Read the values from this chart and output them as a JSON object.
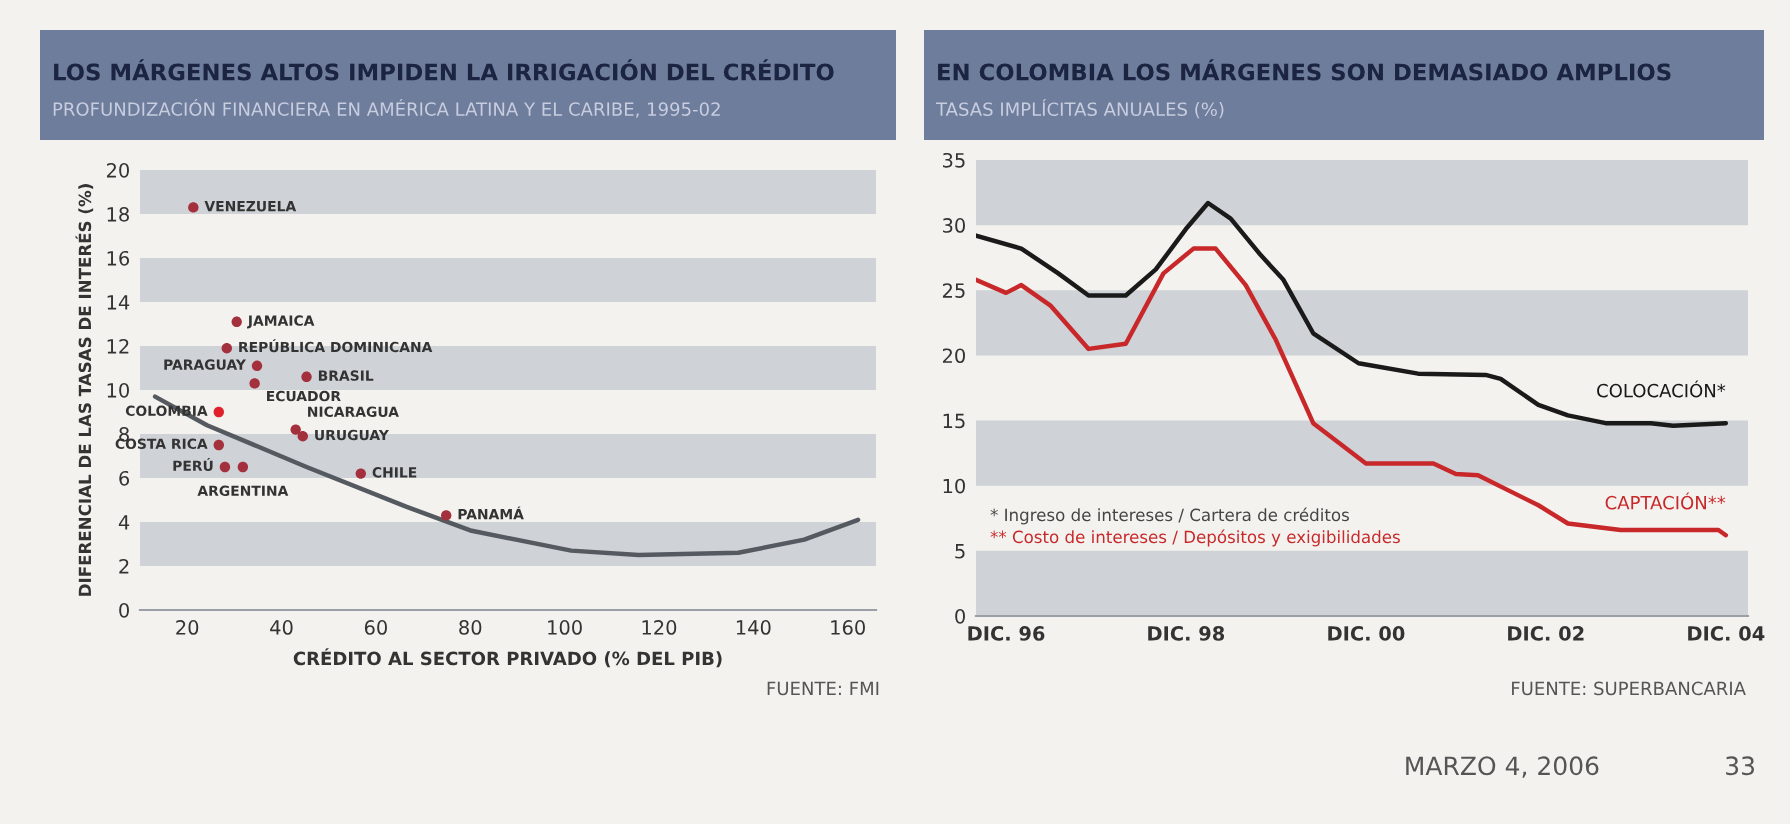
{
  "chart_data": [
    {
      "type": "scatter",
      "title": "LOS MÁRGENES ALTOS IMPIDEN LA IRRIGACIÓN DEL CRÉDITO",
      "subtitle": "PROFUNDIZACIÓN FINANCIERA EN AMÉRICA LATINA Y EL CARIBE, 1995-02",
      "xlabel": "CRÉDITO AL SECTOR PRIVADO (% DEL PIB)",
      "ylabel": "DIFERENCIAL DE LAS TASAS DE INTERÉS (%)",
      "xlim": [
        10,
        166
      ],
      "ylim": [
        0,
        20
      ],
      "xticks": [
        20,
        40,
        60,
        80,
        100,
        120,
        140,
        160
      ],
      "yticks": [
        0,
        2,
        4,
        6,
        8,
        10,
        12,
        14,
        16,
        18,
        20
      ],
      "bands": [
        {
          "axis": "y",
          "from": 18,
          "to": 20,
          "color": "#cfd2d6"
        },
        {
          "axis": "y",
          "from": 14,
          "to": 16,
          "color": "#cfd2d6"
        },
        {
          "axis": "y",
          "from": 10,
          "to": 12,
          "color": "#cfd2d6"
        },
        {
          "axis": "y",
          "from": 6,
          "to": 8,
          "color": "#cfd2d6"
        },
        {
          "axis": "y",
          "from": 2,
          "to": 4,
          "color": "#cfd2d6"
        }
      ],
      "series": [
        {
          "type": "scatter",
          "x": [
            21.3,
            30.5,
            28.4,
            34.8,
            45.3,
            34.3,
            26.7,
            43,
            44.5,
            26.7,
            28,
            31.8,
            56.8,
            74.9
          ],
          "values": [
            18.3,
            13.1,
            11.9,
            11.1,
            10.6,
            10.3,
            9.0,
            8.2,
            7.9,
            7.5,
            6.5,
            6.5,
            6.2,
            4.3
          ],
          "colors": [
            "#a3303c",
            "#a3303c",
            "#a3303c",
            "#a3303c",
            "#a3303c",
            "#a3303c",
            "#e0202a",
            "#a3303c",
            "#a3303c",
            "#a3303c",
            "#a3303c",
            "#a3303c",
            "#a3303c",
            "#a3303c"
          ]
        },
        {
          "type": "line",
          "color": "#555a60",
          "x": [
            13.2,
            24.2,
            45.3,
            66.4,
            80.3,
            101.4,
            115.7,
            136.8,
            150.8,
            162.2
          ],
          "values": [
            9.7,
            8.4,
            6.5,
            4.7,
            3.6,
            2.7,
            2.5,
            2.6,
            3.2,
            4.1
          ]
        }
      ],
      "annotations": [
        {
          "text": "VENEZUELA",
          "x": 21.3,
          "y": 18.3
        },
        {
          "text": "JAMAICA",
          "x": 30.5,
          "y": 13.1
        },
        {
          "text": "REPÚBLICA DOMINICANA",
          "x": 28.4,
          "y": 11.9
        },
        {
          "text": "PARAGUAY",
          "x": 34.8,
          "y": 11.1
        },
        {
          "text": "BRASIL",
          "x": 45.3,
          "y": 10.6
        },
        {
          "text": "ECUADOR",
          "x": 34.3,
          "y": 10.3
        },
        {
          "text": "COLOMBIA",
          "x": 26.7,
          "y": 9.0
        },
        {
          "text": "NICARAGUA",
          "x": 43,
          "y": 8.2
        },
        {
          "text": "URUGUAY",
          "x": 44.5,
          "y": 7.9
        },
        {
          "text": "COSTA RICA",
          "x": 26.7,
          "y": 7.5
        },
        {
          "text": "PERÚ",
          "x": 28,
          "y": 6.5
        },
        {
          "text": "ARGENTINA",
          "x": 31.8,
          "y": 6.5
        },
        {
          "text": "CHILE",
          "x": 56.8,
          "y": 6.2
        },
        {
          "text": "PANAMÁ",
          "x": 74.9,
          "y": 4.3
        },
        "FUENTE: FMI"
      ]
    },
    {
      "type": "line",
      "title": "EN COLOMBIA LOS MÁRGENES SON DEMASIADO AMPLIOS",
      "subtitle": "TASAS IMPLÍCITAS ANUALES (%)",
      "xlim": [
        "1996-08",
        "2005-03"
      ],
      "ylim": [
        0,
        35
      ],
      "xticks": [
        {
          "value": "1996-12",
          "label": "DIC. 96"
        },
        {
          "value": "1998-12",
          "label": "DIC. 98"
        },
        {
          "value": "2000-12",
          "label": "DIC. 00"
        },
        {
          "value": "2002-12",
          "label": "DIC. 02"
        },
        {
          "value": "2004-12",
          "label": "DIC. 04"
        }
      ],
      "yticks": [
        0,
        5,
        10,
        15,
        20,
        25,
        30,
        35
      ],
      "bands": [
        {
          "axis": "y",
          "from": 30,
          "to": 35,
          "color": "#cfd2d6"
        },
        {
          "axis": "y",
          "from": 20,
          "to": 25,
          "color": "#cfd2d6"
        },
        {
          "axis": "y",
          "from": 10,
          "to": 15,
          "color": "#cfd2d6"
        },
        {
          "axis": "y",
          "from": 0,
          "to": 5,
          "color": "#cfd2d6"
        }
      ],
      "series": [
        {
          "name": "COLOCACIÓN*",
          "color": "#1a1a1a",
          "x": [
            "1996-08",
            "1997-02",
            "1997-07",
            "1997-11",
            "1998-04",
            "1998-08",
            "1998-12",
            "1999-03",
            "1999-06",
            "1999-10",
            "2000-01",
            "2000-05",
            "2000-11",
            "2001-07",
            "2002-04",
            "2002-06",
            "2002-11",
            "2003-03",
            "2003-08",
            "2004-02",
            "2004-05",
            "2004-12"
          ],
          "values": [
            29.2,
            28.2,
            26.3,
            24.6,
            24.6,
            26.6,
            29.7,
            31.7,
            30.5,
            27.7,
            25.8,
            21.7,
            19.4,
            18.6,
            18.5,
            18.2,
            16.2,
            15.4,
            14.8,
            14.8,
            14.6,
            14.8
          ]
        },
        {
          "name": "CAPTACIÓN**",
          "color": "#c8282a",
          "x": [
            "1996-08",
            "1996-12",
            "1997-02",
            "1997-06",
            "1997-11",
            "1998-04",
            "1998-09",
            "1999-01",
            "1999-04",
            "1999-08",
            "1999-12",
            "2000-02",
            "2000-05",
            "2000-12",
            "2001-09",
            "2001-12",
            "2002-03",
            "2002-11",
            "2003-03",
            "2003-10",
            "2004-11",
            "2004-12"
          ],
          "values": [
            25.8,
            24.8,
            25.4,
            23.8,
            20.5,
            20.9,
            26.3,
            28.2,
            28.2,
            25.4,
            21.2,
            18.6,
            14.8,
            11.7,
            11.7,
            10.9,
            10.8,
            8.5,
            7.1,
            6.6,
            6.6,
            6.2
          ]
        }
      ],
      "annotations": [
        "* Ingreso de intereses / Cartera de créditos",
        "** Costo de intereses / Depósitos y exigibilidades",
        "FUENTE: SUPERBANCARIA",
        "MARZO 4, 2006",
        "33"
      ]
    }
  ]
}
